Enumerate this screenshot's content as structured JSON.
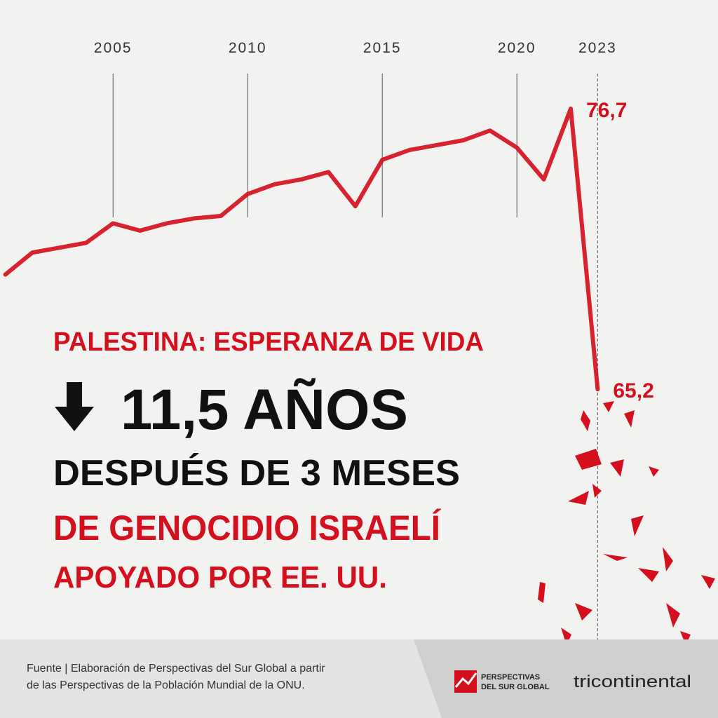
{
  "chart_data": {
    "type": "line",
    "title": "PALESTINA: ESPERANZA DE VIDA",
    "headline": "11,5 AÑOS",
    "subtitle_lines": [
      "DESPUÉS DE 3 MESES",
      "DE GENOCIDIO ISRAELÍ",
      "APOYADO POR EE. UU."
    ],
    "x": [
      2001,
      2002,
      2003,
      2004,
      2005,
      2006,
      2007,
      2008,
      2009,
      2010,
      2011,
      2012,
      2013,
      2014,
      2015,
      2016,
      2017,
      2018,
      2019,
      2020,
      2021,
      2022,
      2023
    ],
    "series": [
      {
        "name": "Palestina",
        "color": "#d5101e",
        "values": [
          69.9,
          70.8,
          71.0,
          71.2,
          72.0,
          71.7,
          72.0,
          72.2,
          72.3,
          73.2,
          73.6,
          73.8,
          74.1,
          72.7,
          74.6,
          75.0,
          75.2,
          75.4,
          75.8,
          75.1,
          73.8,
          76.7,
          65.2
        ],
        "value_labels": [
          null,
          null,
          null,
          null,
          null,
          null,
          null,
          null,
          null,
          null,
          null,
          null,
          null,
          null,
          null,
          null,
          null,
          null,
          null,
          null,
          null,
          "76,7",
          "65,2"
        ]
      }
    ],
    "xlim": [
      2000.8,
      2027.47
    ],
    "ylim": [
      51.73,
      81.15
    ],
    "xticks": [
      2005,
      2010,
      2015,
      2020,
      2023
    ],
    "source": [
      "Fuente | Elaboración de Perspectivas del Sur Global a partir",
      "de las Perspectivas de la Población Mundial de la ONU."
    ],
    "logos": [
      "PERSPECTIVAS",
      "DEL SUR GLOBAL",
      "tricontinental"
    ]
  }
}
